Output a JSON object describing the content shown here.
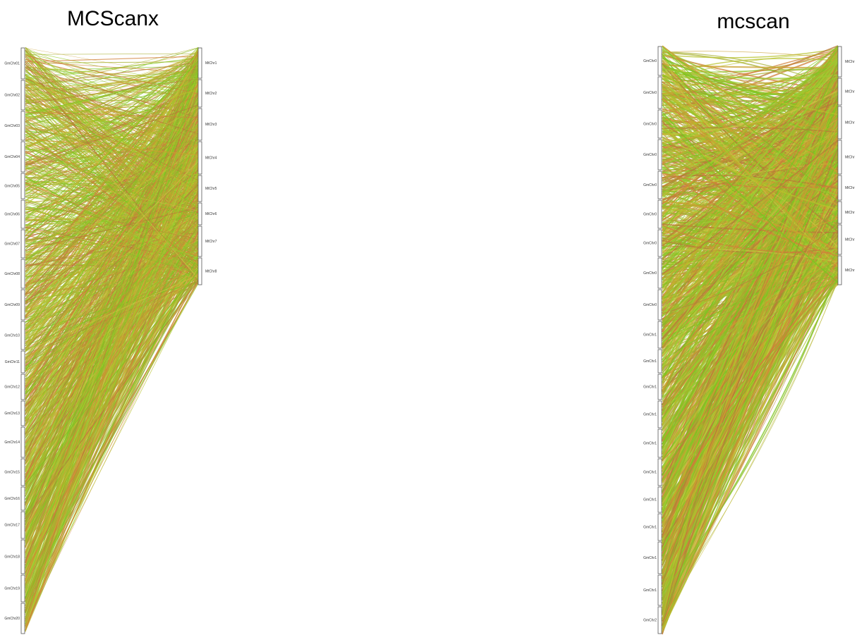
{
  "panels": [
    {
      "title": "MCScanx",
      "left_labels": [
        "GmChr01",
        "GmChr02",
        "GmChr03",
        "GmChr04",
        "GmChr05",
        "GmChr06",
        "GmChr07",
        "GmChr08",
        "GmChr09",
        "GmChr10",
        "GmChr11",
        "GmChr12",
        "GmChr13",
        "GmChr14",
        "GmChr15",
        "GmChr16",
        "GmChr17",
        "GmChr18",
        "GmChr19",
        "GmChr20"
      ],
      "right_labels": [
        "MtChr1",
        "MtChr2",
        "MtChr3",
        "MtChr4",
        "MtChr5",
        "MtChr6",
        "MtChr7",
        "MtChr8"
      ]
    },
    {
      "title": "mcscan",
      "left_labels": [
        "GmChr0",
        "GmChr0",
        "GmChr0",
        "GmChr0",
        "GmChr0",
        "GmChr0",
        "GmChr0",
        "GmChr0",
        "GmChr0",
        "GmChr1",
        "GmChr1",
        "GmChr1",
        "GmChr1",
        "GmChr1",
        "GmChr1",
        "GmChr1",
        "GmChr1",
        "GmChr1",
        "GmChr1",
        "GmChr2"
      ],
      "right_labels": [
        "MtChr",
        "MtChr",
        "MtChr",
        "MtChr",
        "MtChr",
        "MtChr",
        "MtChr",
        "MtChr"
      ]
    }
  ]
}
